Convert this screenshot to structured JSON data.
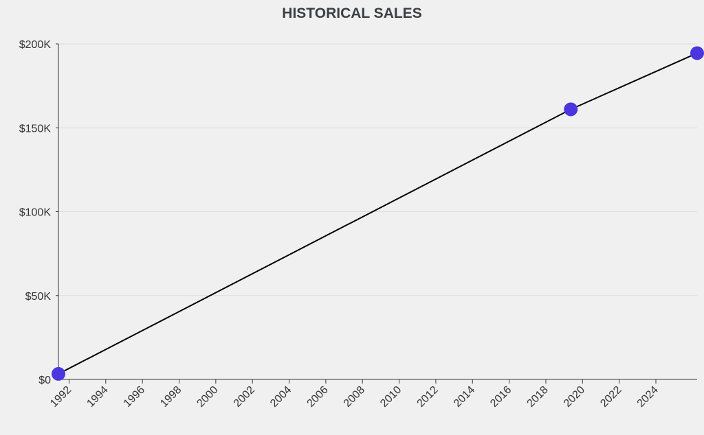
{
  "chart_data": {
    "type": "line",
    "title": "HISTORICAL SALES",
    "xlabel": "",
    "ylabel": "",
    "x": [
      1991.42,
      2019.36,
      2026.25
    ],
    "values": [
      3300,
      161000,
      194500
    ],
    "xlim": [
      1991.42,
      2026.25
    ],
    "ylim": [
      0,
      200000
    ],
    "x_ticks": [
      "1992",
      "1994",
      "1996",
      "1998",
      "2000",
      "2002",
      "2004",
      "2006",
      "2008",
      "2010",
      "2012",
      "2014",
      "2016",
      "2018",
      "2020",
      "2022",
      "2024"
    ],
    "y_ticks": [
      {
        "value": 0,
        "label": "$0"
      },
      {
        "value": 50000,
        "label": "$50K"
      },
      {
        "value": 100000,
        "label": "$100K"
      },
      {
        "value": 150000,
        "label": "$150K"
      },
      {
        "value": 200000,
        "label": "$200K"
      }
    ],
    "grid": true,
    "colors": {
      "line": "#000000",
      "point": "#4a35de",
      "grid": "#dddddd",
      "axis": "#333333"
    }
  }
}
